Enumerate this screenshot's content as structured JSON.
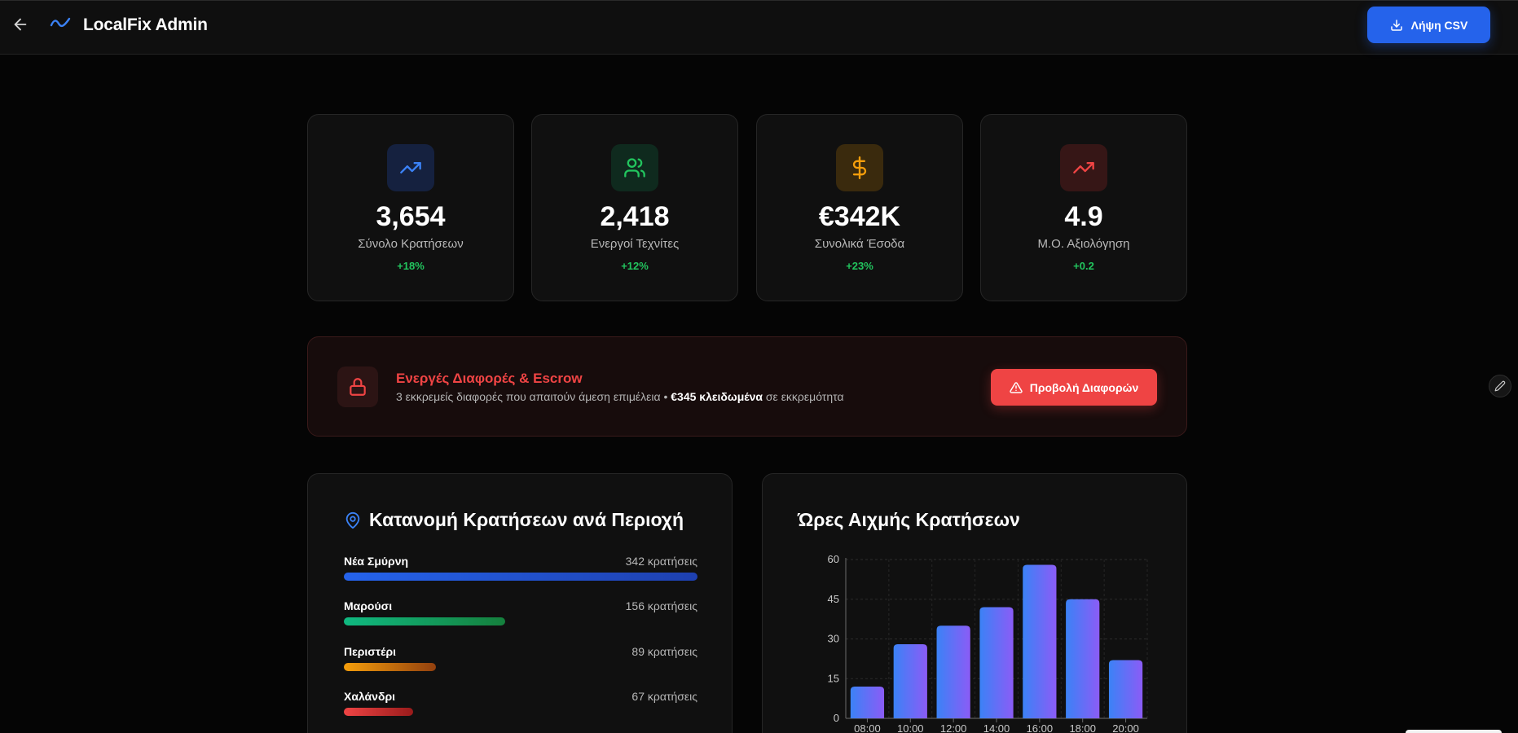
{
  "header": {
    "title": "LocalFix Admin",
    "csv_button": "Λήψη CSV"
  },
  "kpis": [
    {
      "value": "3,654",
      "label": "Σύνολο Κρατήσεων",
      "change": "+18%",
      "icon": "trending-up-icon",
      "color": "#3b82f6"
    },
    {
      "value": "2,418",
      "label": "Ενεργοί Τεχνίτες",
      "change": "+12%",
      "icon": "users-icon",
      "color": "#22c55e"
    },
    {
      "value": "€342K",
      "label": "Συνολικά Έσοδα",
      "change": "+23%",
      "icon": "dollar-icon",
      "color": "#f59e0b"
    },
    {
      "value": "4.9",
      "label": "Μ.Ο. Αξιολόγηση",
      "change": "+0.2",
      "icon": "trending-up-icon",
      "color": "#ef4444"
    }
  ],
  "alert": {
    "title": "Ενεργές Διαφορές & Escrow",
    "desc_prefix": "3 εκκρεμείς διαφορές που απαιτούν άμεση επιμέλεια • ",
    "desc_bold": "€345 κλειδωμένα",
    "desc_suffix": " σε εκκρεμότητα",
    "button": "Προβολή Διαφορών"
  },
  "regions": {
    "title": "Κατανομή Κρατήσεων ανά Περιοχή",
    "items": [
      {
        "name": "Νέα Σμύρνη",
        "count": "342 κρατήσεις",
        "value": 342,
        "color_from": "#2563eb",
        "color_to": "#1e40af"
      },
      {
        "name": "Μαρούσι",
        "count": "156 κρατήσεις",
        "value": 156,
        "color_from": "#10b981",
        "color_to": "#15803d"
      },
      {
        "name": "Περιστέρι",
        "count": "89 κρατήσεις",
        "value": 89,
        "color_from": "#f59e0b",
        "color_to": "#92400e"
      },
      {
        "name": "Χαλάνδρι",
        "count": "67 κρατήσεις",
        "value": 67,
        "color_from": "#ef4444",
        "color_to": "#991b1b"
      }
    ]
  },
  "peak": {
    "title": "Ώρες Αιχμής Κρατήσεων"
  },
  "chart_data": {
    "type": "bar",
    "title": "Ώρες Αιχμής Κρατήσεων",
    "categories": [
      "08:00",
      "10:00",
      "12:00",
      "14:00",
      "16:00",
      "18:00",
      "20:00"
    ],
    "values": [
      12,
      28,
      35,
      42,
      58,
      45,
      22
    ],
    "ylim": [
      0,
      60
    ],
    "yticks": [
      0,
      15,
      30,
      45,
      60
    ],
    "grid": true,
    "bar_color_from": "#3b82f6",
    "bar_color_to": "#8b5cf6"
  }
}
